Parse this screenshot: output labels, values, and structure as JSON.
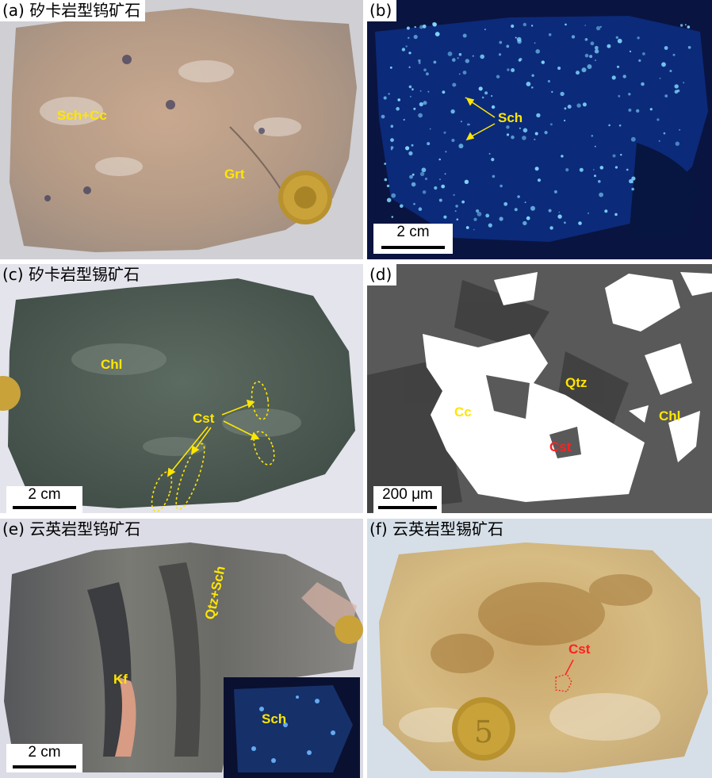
{
  "panels": {
    "a": {
      "label": "(a) 矽卡岩型钨矿石",
      "ann1": "Sch+Cc",
      "ann2": "Grt"
    },
    "b": {
      "label": "(b)",
      "ann1": "Sch",
      "scale": "2 cm"
    },
    "c": {
      "label": "(c) 矽卡岩型锡矿石",
      "ann1": "Chl",
      "ann2": "Cst",
      "scale": "2 cm"
    },
    "d": {
      "label": "(d)",
      "ann1": "Qtz",
      "ann2": "Cc",
      "ann3": "Chl",
      "ann4": "Cst",
      "scale": "200 μm"
    },
    "e": {
      "label": "(e) 云英岩型钨矿石",
      "ann1": "Qtz+Sch",
      "ann2": "Kf",
      "ann3": "Sch",
      "scale": "2 cm"
    },
    "f": {
      "label": "(f) 云英岩型锡矿石",
      "ann1": "Cst"
    }
  },
  "colors": {
    "annotation": "#ffe600",
    "annotation_red": "#ff2020",
    "skarn_w": "#b8a08a",
    "uv_bg": "#0a1a4a",
    "skarn_sn": "#4f5d56",
    "bse": "#585858",
    "greisen_w": "#6a6a66",
    "greisen_sn": "#d2b06e"
  }
}
